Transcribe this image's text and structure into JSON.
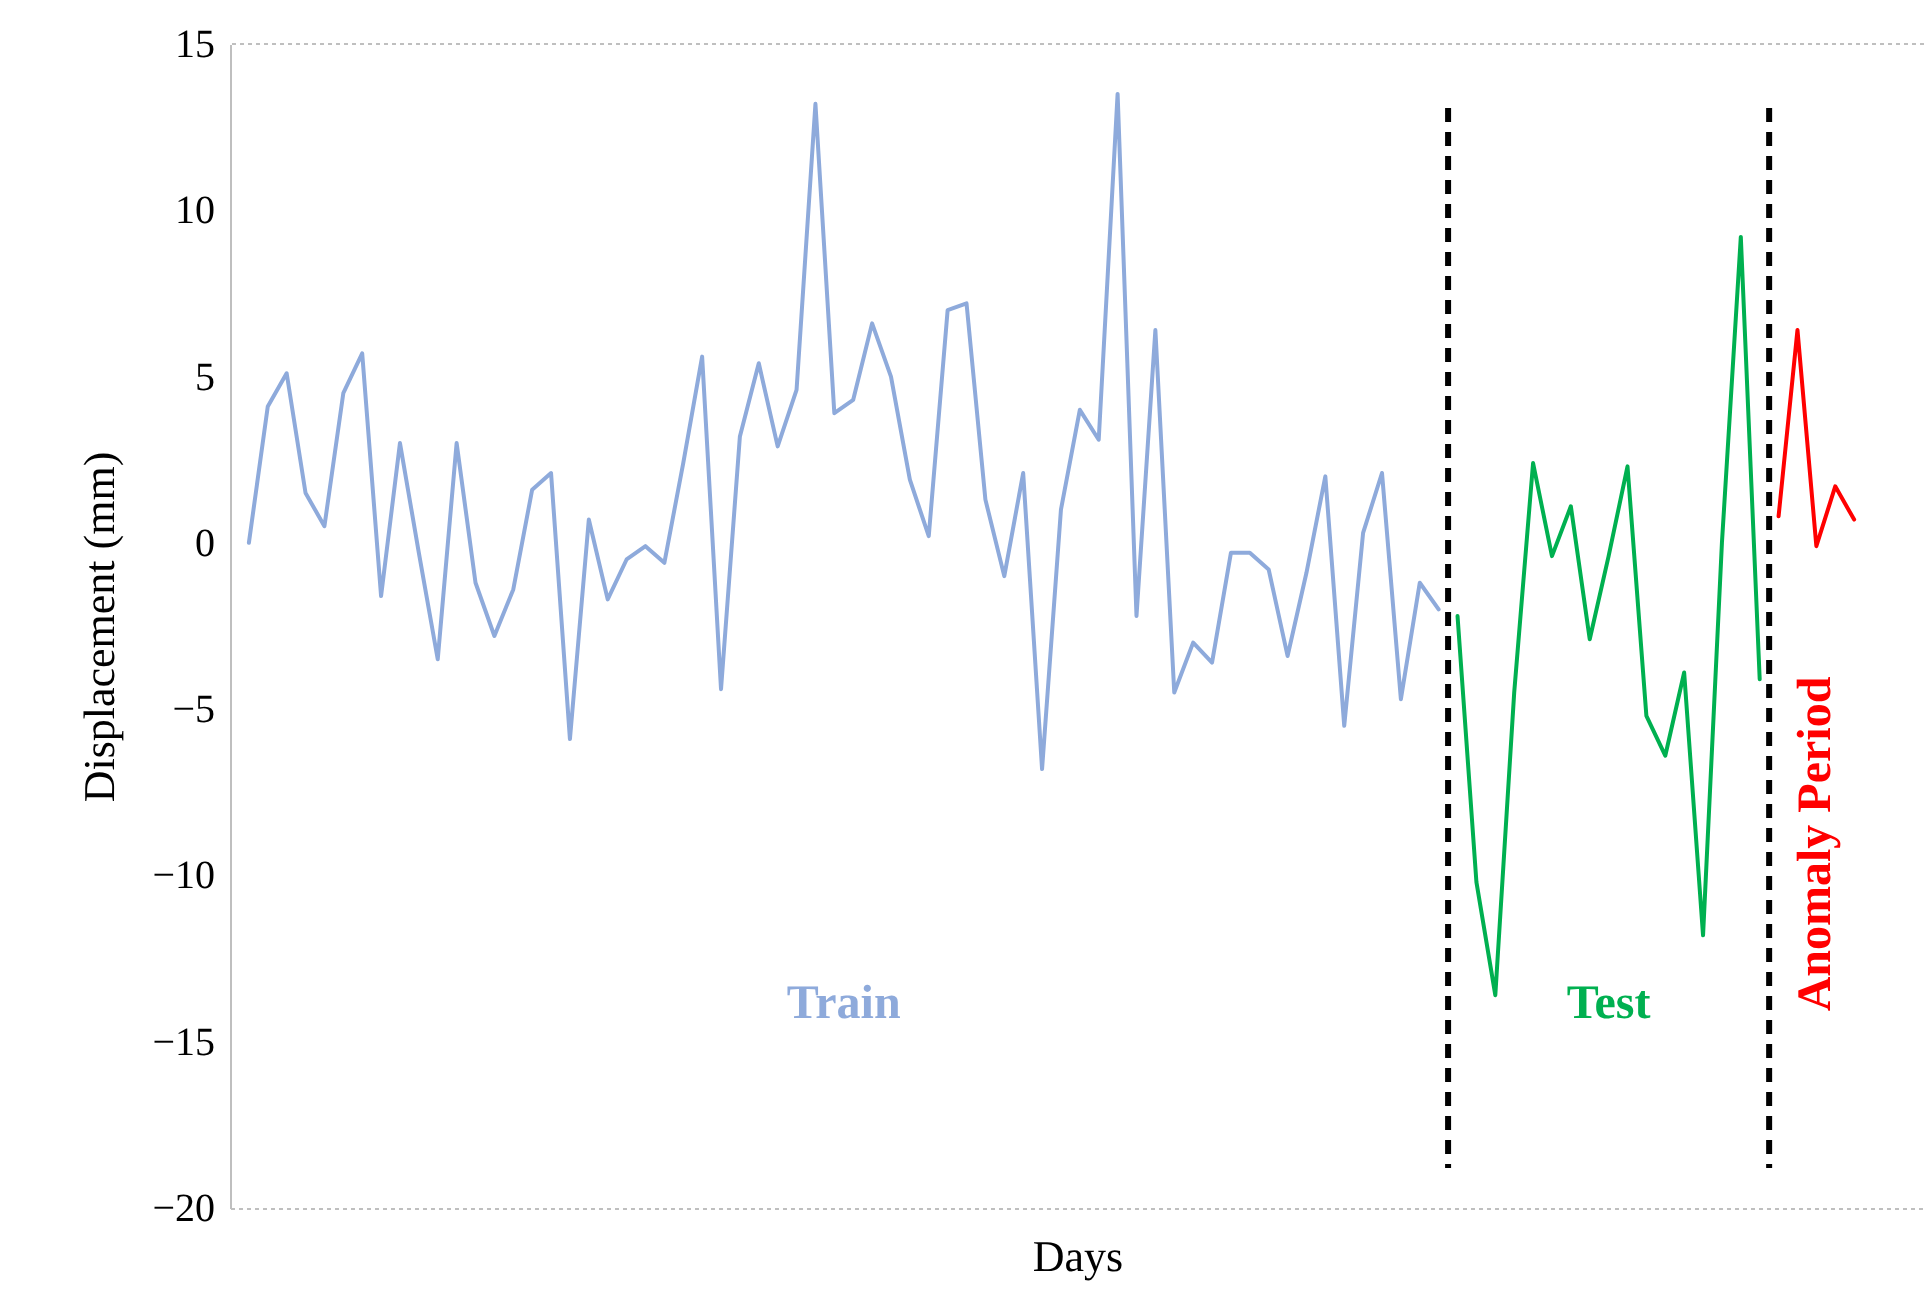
{
  "chart_data": {
    "type": "line",
    "xlabel": "Days",
    "ylabel": "Displacement (mm)",
    "categories": [
      null,
      null,
      null,
      null,
      null,
      null,
      null,
      null,
      null,
      null,
      null,
      null,
      null,
      null,
      null,
      null,
      null,
      null,
      null,
      null,
      null,
      null,
      null,
      null,
      null,
      null,
      null,
      null,
      null,
      null,
      null,
      null,
      null,
      null,
      null,
      null,
      null,
      null,
      null,
      null,
      null,
      null,
      null,
      null,
      null,
      null,
      null,
      null,
      null,
      null,
      null,
      null,
      null,
      null,
      null,
      null,
      null,
      null,
      null,
      null,
      null,
      null,
      null,
      null,
      null,
      null,
      null,
      null,
      null,
      null,
      null,
      null,
      null,
      null,
      null,
      null,
      null,
      null,
      null,
      null,
      null,
      null,
      null,
      null,
      null,
      null
    ],
    "series": [
      {
        "name": "Train",
        "color": "#8eaadb",
        "values": [
          0,
          4.1,
          5.1,
          1.5,
          0.5,
          4.5,
          5.7,
          -1.6,
          3,
          -0.3,
          -3.5,
          3,
          -1.2,
          -2.8,
          -1.4,
          1.6,
          2.1,
          -5.9,
          0.7,
          -1.7,
          -0.5,
          -0.1,
          -0.6,
          2.4,
          5.6,
          -4.4,
          3.2,
          5.4,
          2.9,
          4.6,
          13.2,
          3.9,
          4.3,
          6.6,
          5,
          1.9,
          0.2,
          7,
          7.2,
          1.3,
          -1,
          2.1,
          -6.8,
          1,
          4,
          3.1,
          13.5,
          -2.2,
          6.4,
          -4.5,
          -3,
          -3.6,
          -0.3,
          -0.3,
          -0.8,
          -3.4,
          -0.9,
          2,
          -5.5,
          0.3,
          2.1,
          -4.7,
          -1.2,
          -2,
          null,
          null,
          null,
          null,
          null,
          null,
          null,
          null,
          null,
          null,
          null,
          null,
          null,
          null,
          null,
          null,
          null,
          null,
          null,
          null,
          null,
          null
        ]
      },
      {
        "name": "Test",
        "color": "#00b050",
        "values": [
          null,
          null,
          null,
          null,
          null,
          null,
          null,
          null,
          null,
          null,
          null,
          null,
          null,
          null,
          null,
          null,
          null,
          null,
          null,
          null,
          null,
          null,
          null,
          null,
          null,
          null,
          null,
          null,
          null,
          null,
          null,
          null,
          null,
          null,
          null,
          null,
          null,
          null,
          null,
          null,
          null,
          null,
          null,
          null,
          null,
          null,
          null,
          null,
          null,
          null,
          null,
          null,
          null,
          null,
          null,
          null,
          null,
          null,
          null,
          null,
          null,
          null,
          null,
          null,
          -2.2,
          -10.2,
          -13.6,
          -4.5,
          2.4,
          -0.4,
          1.1,
          -2.9,
          -0.4,
          2.3,
          -5.2,
          -6.4,
          -3.9,
          -11.8,
          0,
          9.2,
          -4.1,
          null,
          null,
          null,
          null,
          null
        ]
      },
      {
        "name": "Anomaly Period",
        "color": "#ff0000",
        "values": [
          null,
          null,
          null,
          null,
          null,
          null,
          null,
          null,
          null,
          null,
          null,
          null,
          null,
          null,
          null,
          null,
          null,
          null,
          null,
          null,
          null,
          null,
          null,
          null,
          null,
          null,
          null,
          null,
          null,
          null,
          null,
          null,
          null,
          null,
          null,
          null,
          null,
          null,
          null,
          null,
          null,
          null,
          null,
          null,
          null,
          null,
          null,
          null,
          null,
          null,
          null,
          null,
          null,
          null,
          null,
          null,
          null,
          null,
          null,
          null,
          null,
          null,
          null,
          null,
          null,
          null,
          null,
          null,
          null,
          null,
          null,
          null,
          null,
          null,
          null,
          null,
          null,
          null,
          null,
          null,
          null,
          0.8,
          6.4,
          -0.1,
          1.7,
          0.7
        ]
      }
    ],
    "ylim": [
      -20,
      15
    ],
    "yticks": [
      -20,
      -15,
      -10,
      -5,
      0,
      5,
      10,
      15
    ],
    "grid": false,
    "tick_labels": "y"
  }
}
